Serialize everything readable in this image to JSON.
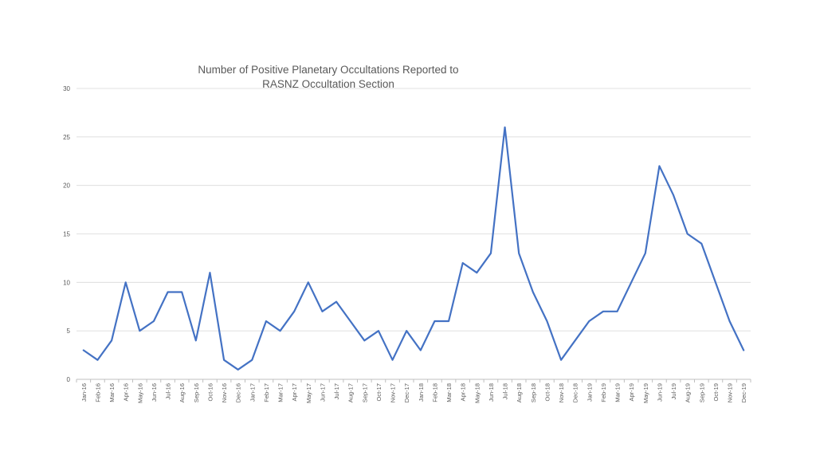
{
  "chart_data": {
    "type": "line",
    "title_lines": [
      "Number of Positive Planetary Occultations Reported to",
      "RASNZ Occultation Section"
    ],
    "xlabel": "",
    "ylabel": "",
    "ylim": [
      0,
      30
    ],
    "yticks": [
      0,
      5,
      10,
      15,
      20,
      25,
      30
    ],
    "grid": true,
    "legend": "none",
    "color": "#4472C4",
    "categories": [
      "Jan-16",
      "Feb-16",
      "Mar-16",
      "Apr-16",
      "May-16",
      "Jun-16",
      "Jul-16",
      "Aug-16",
      "Sep-16",
      "Oct-16",
      "Nov-16",
      "Dec-16",
      "Jan-17",
      "Feb-17",
      "Mar-17",
      "Apr-17",
      "May-17",
      "Jun-17",
      "Jul-17",
      "Aug-17",
      "Sep-17",
      "Oct-17",
      "Nov-17",
      "Dec-17",
      "Jan-18",
      "Feb-18",
      "Mar-18",
      "Apr-18",
      "May-18",
      "Jun-18",
      "Jul-18",
      "Aug-18",
      "Sep-18",
      "Oct-18",
      "Nov-18",
      "Dec-18",
      "Jan-19",
      "Feb-19",
      "Mar-19",
      "Apr-19",
      "May-19",
      "Jun-19",
      "Jul-19",
      "Aug-19",
      "Sep-19",
      "Oct-19",
      "Nov-19",
      "Dec-19"
    ],
    "values": [
      3,
      2,
      4,
      10,
      5,
      6,
      9,
      9,
      4,
      11,
      2,
      1,
      2,
      6,
      5,
      7,
      10,
      7,
      8,
      6,
      4,
      5,
      2,
      5,
      3,
      6,
      6,
      12,
      11,
      13,
      26,
      13,
      9,
      6,
      2,
      4,
      6,
      7,
      7,
      10,
      13,
      22,
      19,
      15,
      14,
      10,
      6,
      3
    ]
  }
}
